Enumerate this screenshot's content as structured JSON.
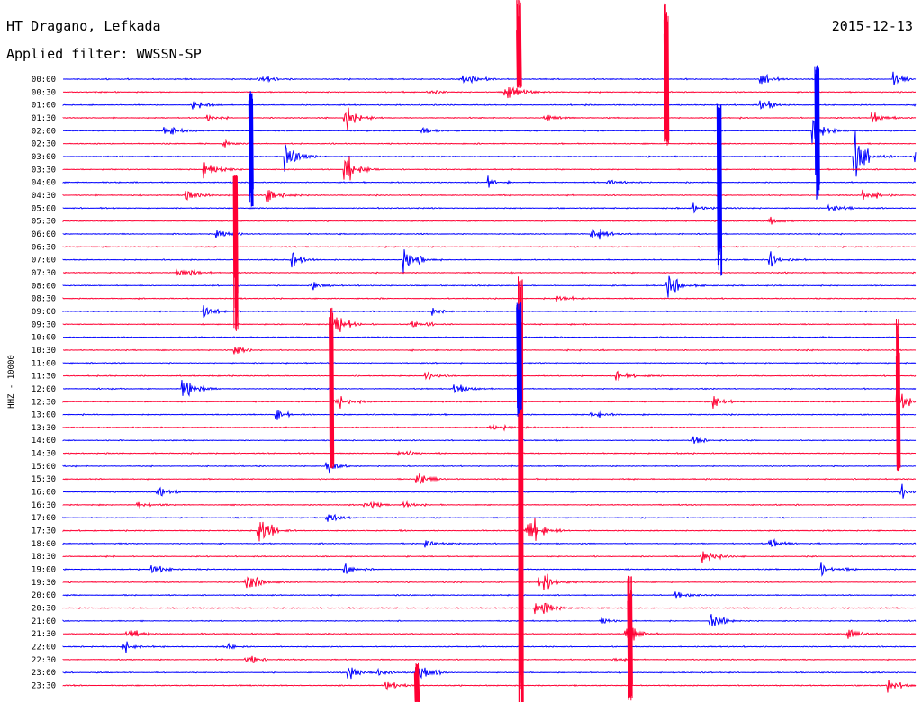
{
  "header": {
    "station": "HT Dragano, Lefkada",
    "date": "2015-12-13",
    "filter_label": "Applied filter: WWSSN-SP"
  },
  "chart_data": {
    "type": "line",
    "title": "HT Dragano, Lefkada",
    "date": "2015-12-13",
    "filter": "WWSSN-SP",
    "ylabel": "HHZ - 10000",
    "xlabel": "",
    "minutes_per_line": 30,
    "colors": [
      "#0000ff",
      "#ff0033"
    ],
    "rows": [
      "00:00",
      "00:30",
      "01:00",
      "01:30",
      "02:00",
      "02:30",
      "03:00",
      "03:30",
      "04:00",
      "04:30",
      "05:00",
      "05:30",
      "06:00",
      "06:30",
      "07:00",
      "07:30",
      "08:00",
      "08:30",
      "09:00",
      "09:30",
      "10:00",
      "10:30",
      "11:00",
      "11:30",
      "12:00",
      "12:30",
      "13:00",
      "13:30",
      "14:00",
      "14:30",
      "15:00",
      "15:30",
      "16:00",
      "16:30",
      "17:00",
      "17:30",
      "18:00",
      "18:30",
      "19:00",
      "19:30",
      "20:00",
      "20:30",
      "21:00",
      "21:30",
      "22:00",
      "22:30",
      "23:00",
      "23:30"
    ],
    "events": [
      {
        "row": 0,
        "t": 0.23,
        "a": 1.2
      },
      {
        "row": 0,
        "t": 0.47,
        "a": 2.0
      },
      {
        "row": 0,
        "t": 0.82,
        "a": 1.6
      },
      {
        "row": 0,
        "t": 0.975,
        "a": 1.8
      },
      {
        "row": 1,
        "t": 0.515,
        "a": 3.5
      },
      {
        "row": 1,
        "t": 0.43,
        "a": 0.6
      },
      {
        "row": 2,
        "t": 0.15,
        "a": 1.4
      },
      {
        "row": 2,
        "t": 0.82,
        "a": 2.0
      },
      {
        "row": 2,
        "t": 1.0,
        "a": 1.0
      },
      {
        "row": 3,
        "t": 0.33,
        "a": 4.0
      },
      {
        "row": 3,
        "t": 0.565,
        "a": 1.4
      },
      {
        "row": 3,
        "t": 0.95,
        "a": 1.8
      },
      {
        "row": 3,
        "t": 0.17,
        "a": 0.8
      },
      {
        "row": 4,
        "t": 0.12,
        "a": 1.3
      },
      {
        "row": 4,
        "t": 0.42,
        "a": 1.0
      },
      {
        "row": 4,
        "t": 0.88,
        "a": 3.5
      },
      {
        "row": 5,
        "t": 0.19,
        "a": 0.9
      },
      {
        "row": 6,
        "t": 0.26,
        "a": 4.5
      },
      {
        "row": 6,
        "t": 0.93,
        "a": 5.5
      },
      {
        "row": 6,
        "t": 1.0,
        "a": 2.0
      },
      {
        "row": 7,
        "t": 0.33,
        "a": 4.5
      },
      {
        "row": 7,
        "t": 0.165,
        "a": 2.5
      },
      {
        "row": 8,
        "t": 0.5,
        "a": 1.2
      },
      {
        "row": 8,
        "t": 0.64,
        "a": 1.0
      },
      {
        "row": 9,
        "t": 0.145,
        "a": 2.5
      },
      {
        "row": 9,
        "t": 0.24,
        "a": 3.0
      },
      {
        "row": 9,
        "t": 0.94,
        "a": 2.5
      },
      {
        "row": 10,
        "t": 0.74,
        "a": 1.5
      },
      {
        "row": 10,
        "t": 0.9,
        "a": 1.5
      },
      {
        "row": 11,
        "t": 0.83,
        "a": 1.2
      },
      {
        "row": 12,
        "t": 0.62,
        "a": 2.5
      },
      {
        "row": 12,
        "t": 0.18,
        "a": 1.0
      },
      {
        "row": 14,
        "t": 0.4,
        "a": 4.0
      },
      {
        "row": 14,
        "t": 0.27,
        "a": 1.4
      },
      {
        "row": 14,
        "t": 0.83,
        "a": 1.5
      },
      {
        "row": 15,
        "t": 0.135,
        "a": 2.0
      },
      {
        "row": 16,
        "t": 0.29,
        "a": 1.0
      },
      {
        "row": 16,
        "t": 0.71,
        "a": 2.5
      },
      {
        "row": 17,
        "t": 0.58,
        "a": 1.0
      },
      {
        "row": 18,
        "t": 0.165,
        "a": 2.5
      },
      {
        "row": 18,
        "t": 0.435,
        "a": 0.8
      },
      {
        "row": 19,
        "t": 0.32,
        "a": 3.5
      },
      {
        "row": 19,
        "t": 0.41,
        "a": 1.3
      },
      {
        "row": 21,
        "t": 0.2,
        "a": 1.3
      },
      {
        "row": 23,
        "t": 0.425,
        "a": 1.0
      },
      {
        "row": 23,
        "t": 0.65,
        "a": 1.4
      },
      {
        "row": 24,
        "t": 0.14,
        "a": 2.5
      },
      {
        "row": 24,
        "t": 0.46,
        "a": 1.6
      },
      {
        "row": 25,
        "t": 0.315,
        "a": 4.5
      },
      {
        "row": 25,
        "t": 0.765,
        "a": 1.4
      },
      {
        "row": 25,
        "t": 0.98,
        "a": 4.0
      },
      {
        "row": 26,
        "t": 0.25,
        "a": 1.5
      },
      {
        "row": 26,
        "t": 0.62,
        "a": 1.0
      },
      {
        "row": 27,
        "t": 0.5,
        "a": 2.0
      },
      {
        "row": 28,
        "t": 0.74,
        "a": 1.2
      },
      {
        "row": 29,
        "t": 0.395,
        "a": 1.6
      },
      {
        "row": 30,
        "t": 0.31,
        "a": 1.8
      },
      {
        "row": 31,
        "t": 0.415,
        "a": 2.5
      },
      {
        "row": 32,
        "t": 0.11,
        "a": 1.3
      },
      {
        "row": 32,
        "t": 0.985,
        "a": 2.0
      },
      {
        "row": 33,
        "t": 0.085,
        "a": 1.5
      },
      {
        "row": 33,
        "t": 0.355,
        "a": 2.0
      },
      {
        "row": 33,
        "t": 0.4,
        "a": 1.2
      },
      {
        "row": 34,
        "t": 0.31,
        "a": 1.3
      },
      {
        "row": 35,
        "t": 0.23,
        "a": 3.5
      },
      {
        "row": 35,
        "t": 0.545,
        "a": 4.5
      },
      {
        "row": 36,
        "t": 0.425,
        "a": 1.2
      },
      {
        "row": 36,
        "t": 0.83,
        "a": 1.3
      },
      {
        "row": 37,
        "t": 0.75,
        "a": 2.0
      },
      {
        "row": 38,
        "t": 0.105,
        "a": 1.3
      },
      {
        "row": 38,
        "t": 0.33,
        "a": 1.2
      },
      {
        "row": 38,
        "t": 0.89,
        "a": 2.5
      },
      {
        "row": 39,
        "t": 0.215,
        "a": 3.0
      },
      {
        "row": 39,
        "t": 0.56,
        "a": 3.0
      },
      {
        "row": 40,
        "t": 0.72,
        "a": 1.2
      },
      {
        "row": 41,
        "t": 0.555,
        "a": 2.5
      },
      {
        "row": 42,
        "t": 0.76,
        "a": 2.5
      },
      {
        "row": 42,
        "t": 0.63,
        "a": 1.1
      },
      {
        "row": 43,
        "t": 0.075,
        "a": 2.0
      },
      {
        "row": 43,
        "t": 0.66,
        "a": 3.5
      },
      {
        "row": 43,
        "t": 0.92,
        "a": 1.3
      },
      {
        "row": 44,
        "t": 0.07,
        "a": 2.0
      },
      {
        "row": 44,
        "t": 0.19,
        "a": 1.0
      },
      {
        "row": 45,
        "t": 0.215,
        "a": 1.4
      },
      {
        "row": 45,
        "t": 0.645,
        "a": 1.0
      },
      {
        "row": 46,
        "t": 0.335,
        "a": 1.4
      },
      {
        "row": 46,
        "t": 0.415,
        "a": 2.5
      },
      {
        "row": 46,
        "t": 0.37,
        "a": 1.2
      },
      {
        "row": 47,
        "t": 0.38,
        "a": 2.0
      },
      {
        "row": 47,
        "t": 0.97,
        "a": 1.4
      }
    ],
    "spikes": [
      {
        "t": 0.535,
        "row": 0,
        "h_up": 90,
        "h_down": 10,
        "color": 1
      },
      {
        "t": 0.708,
        "row": 1,
        "h_up": 100,
        "h_down": 60,
        "color": 1
      },
      {
        "t": 0.202,
        "row": 8,
        "h_up": 8,
        "h_down": 170,
        "color": 1
      },
      {
        "t": 0.22,
        "row": 3,
        "h_up": 30,
        "h_down": 100,
        "color": 0
      },
      {
        "t": 0.77,
        "row": 4,
        "h_up": 30,
        "h_down": 170,
        "color": 0
      },
      {
        "t": 0.885,
        "row": 1,
        "h_up": 30,
        "h_down": 120,
        "color": 0
      },
      {
        "t": 0.315,
        "row": 26,
        "h_up": 120,
        "h_down": 60,
        "color": 1
      },
      {
        "t": 0.537,
        "row": 37,
        "h_up": 320,
        "h_down": 180,
        "color": 1
      },
      {
        "t": 0.98,
        "row": 29,
        "h_up": 150,
        "h_down": 20,
        "color": 1
      },
      {
        "t": 0.535,
        "row": 20,
        "h_up": 40,
        "h_down": 90,
        "color": 0
      },
      {
        "t": 0.665,
        "row": 44,
        "h_up": 80,
        "h_down": 60,
        "color": 1
      },
      {
        "t": 0.415,
        "row": 48,
        "h_up": 40,
        "h_down": 5,
        "color": 1
      }
    ]
  }
}
